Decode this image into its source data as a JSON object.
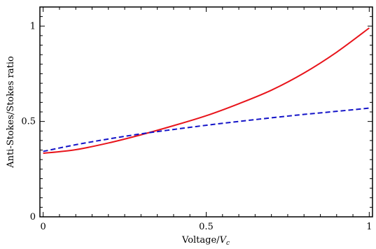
{
  "chart_data": {
    "type": "line",
    "title": "",
    "xlabel_main": "Voltage/",
    "xlabel_var": "V",
    "xlabel_sub": "c",
    "ylabel": "Anti-Stokes/Stokes ratio",
    "xlim": [
      -0.01,
      1.01
    ],
    "ylim": [
      0,
      1.1
    ],
    "xticks": [
      0,
      0.5,
      1
    ],
    "yticks": [
      0,
      0.5,
      1
    ],
    "xtick_labels": [
      "0",
      "0.5",
      "1"
    ],
    "ytick_labels": [
      "0",
      "0.5",
      "1"
    ],
    "grid": false,
    "series": [
      {
        "style": "solid",
        "color": "#e8141b",
        "x": [
          0,
          0.1,
          0.2,
          0.3,
          0.4,
          0.5,
          0.6,
          0.7,
          0.8,
          0.9,
          1.0
        ],
        "y": [
          0.333,
          0.352,
          0.387,
          0.43,
          0.478,
          0.53,
          0.593,
          0.664,
          0.754,
          0.863,
          0.99
        ]
      },
      {
        "style": "dashed",
        "color": "#1414c8",
        "x": [
          0,
          0.1,
          0.2,
          0.3,
          0.4,
          0.5,
          0.6,
          0.7,
          0.8,
          0.9,
          1.0
        ],
        "y": [
          0.343,
          0.378,
          0.408,
          0.435,
          0.458,
          0.48,
          0.5,
          0.519,
          0.537,
          0.553,
          0.57
        ]
      }
    ]
  }
}
